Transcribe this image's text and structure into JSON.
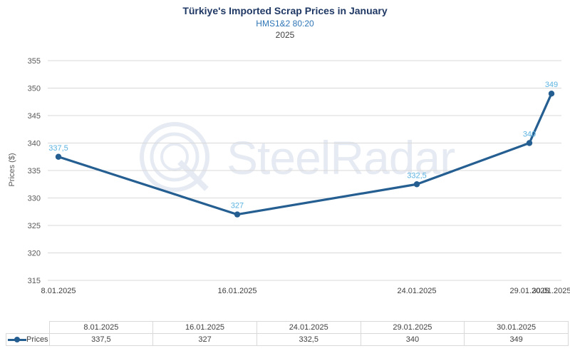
{
  "chart_data": {
    "type": "line",
    "title": "Türkiye's Imported Scrap Prices in January",
    "subtitle": "HMS1&2 80:20",
    "year": "2025",
    "ylabel": "Prices ($)",
    "xlabel": "",
    "ylim": [
      315,
      355
    ],
    "yticks": [
      315,
      320,
      325,
      330,
      335,
      340,
      345,
      350,
      355
    ],
    "categories": [
      "8.01.2025",
      "16.01.2025",
      "24.01.2025",
      "29.01.2025",
      "30.01.2025"
    ],
    "series": [
      {
        "name": "Prices",
        "values": [
          337.5,
          327,
          332.5,
          340,
          349
        ],
        "labels": [
          "337,5",
          "327",
          "332,5",
          "340",
          "349"
        ],
        "color": "#255e91",
        "label_color": "#5bb3e0"
      }
    ],
    "grid": true,
    "data_table": true
  },
  "watermark": {
    "text": "SteelRadar"
  }
}
